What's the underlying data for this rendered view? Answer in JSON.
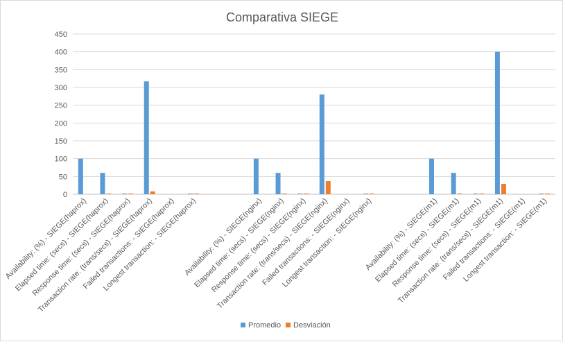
{
  "chart_data": {
    "type": "bar",
    "title": "Comparativa SIEGE",
    "xlabel": "",
    "ylabel": "",
    "ylim": [
      0,
      450
    ],
    "yticks": [
      0,
      50,
      100,
      150,
      200,
      250,
      300,
      350,
      400,
      450
    ],
    "grid": true,
    "legend_position": "bottom",
    "categories": [
      "Availability: (%) - SIEGE(haprox)",
      "Elapsed time: (secs) - SIEGE(haprox)",
      "Response time: (secs) - SIEGE(haprox)",
      "Transaction rate: (trans/secs) - SIEGE(haprox)",
      "Failed transactions: - SIEGE(haprox)",
      "Longest transaction: - SIEGE(haprox)",
      "",
      "",
      "Availability: (%) - SIEGE(nginx)",
      "Elapsed time: (secs) - SIEGE(nginx)",
      "Response time: (secs) - SIEGE(nginx)",
      "Transaction rate: (trans/secs) - SIEGE(nginx)",
      "Failed transactions: - SIEGE(nginx)",
      "Longest transaction: - SIEGE(nginx)",
      "",
      "",
      "Availability: (%) - SIEGE(m1)",
      "Elapsed time: (secs) - SIEGE(m1)",
      "Response time: (secs) - SIEGE(m1)",
      "Transaction rate: (trans/secs) - SIEGE(m1)",
      "Failed transactions: - SIEGE(m1)",
      "Longest transaction: - SIEGE(m1)"
    ],
    "series": [
      {
        "name": "Promedio",
        "color": "#5b9bd5",
        "values": [
          100,
          60,
          2,
          317,
          0,
          2,
          null,
          null,
          100,
          60,
          2,
          280,
          0,
          2,
          null,
          null,
          100,
          60,
          2,
          400,
          0,
          2
        ]
      },
      {
        "name": "Desviación",
        "color": "#ed7d31",
        "values": [
          0,
          2,
          2,
          8,
          0,
          2,
          null,
          null,
          0,
          2,
          2,
          37,
          0,
          2,
          null,
          null,
          0,
          2,
          2,
          29,
          0,
          2
        ]
      }
    ]
  }
}
